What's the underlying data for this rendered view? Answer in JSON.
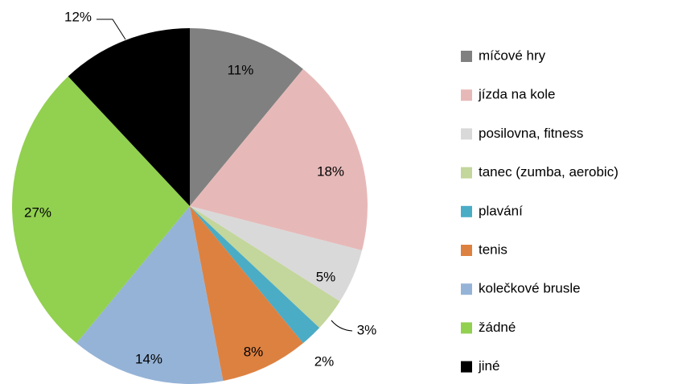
{
  "chart_data": {
    "type": "pie",
    "categories": [
      "míčové hry",
      "jízda na kole",
      "posilovna, fitness",
      "tanec (zumba,  aerobic)",
      "plavání",
      "tenis",
      "kolečkové brusle",
      "žádné",
      "jiné"
    ],
    "values": [
      11,
      18,
      5,
      3,
      2,
      8,
      14,
      27,
      12
    ],
    "value_labels": [
      "11%",
      "18%",
      "5%",
      "3%",
      "2%",
      "8%",
      "14%",
      "27%",
      "12%"
    ],
    "colors": [
      "#808080",
      "#e6b9b8",
      "#d9d9d9",
      "#c3d69b",
      "#4bacc6",
      "#dd8140",
      "#95b3d7",
      "#92d050",
      "#000000"
    ],
    "legend": "right"
  }
}
